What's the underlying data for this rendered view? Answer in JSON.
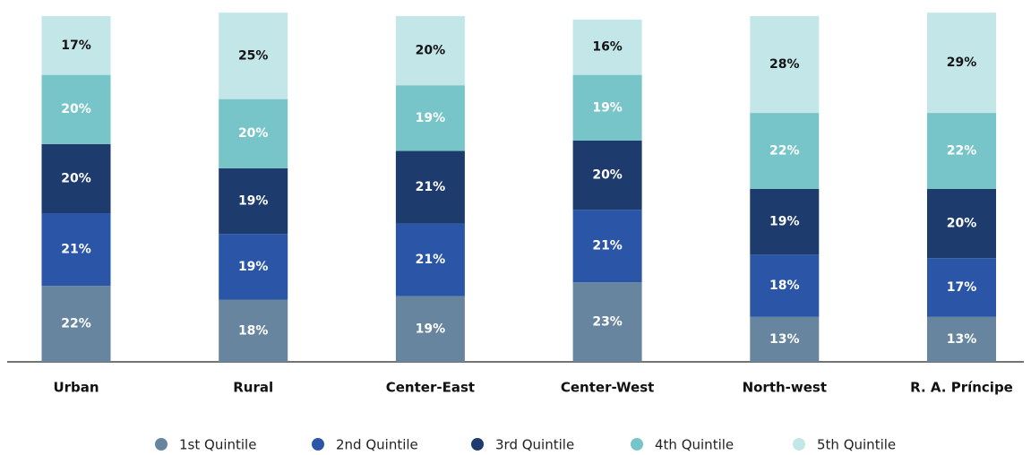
{
  "chart_data": {
    "type": "stacked-bar",
    "categories": [
      "Urban",
      "Rural",
      "Center-East",
      "Center-West",
      "North-west",
      "R. A. Príncipe"
    ],
    "series": [
      {
        "name": "1st Quintile",
        "color": "#67859f",
        "values": [
          22,
          18,
          19,
          23,
          13,
          13
        ],
        "value_labels": [
          "22%",
          "18%",
          "19%",
          "23%",
          "13%",
          "13%"
        ]
      },
      {
        "name": "2nd Quintile",
        "color": "#2b56a7",
        "values": [
          21,
          19,
          21,
          21,
          18,
          17
        ],
        "value_labels": [
          "21%",
          "19%",
          "21%",
          "21%",
          "18%",
          "17%"
        ]
      },
      {
        "name": "3rd Quintile",
        "color": "#1d3b6c",
        "values": [
          20,
          19,
          21,
          20,
          19,
          20
        ],
        "value_labels": [
          "20%",
          "19%",
          "21%",
          "20%",
          "19%",
          "20%"
        ]
      },
      {
        "name": "4th Quintile",
        "color": "#77c5c8",
        "values": [
          20,
          20,
          19,
          19,
          22,
          22
        ],
        "value_labels": [
          "20%",
          "20%",
          "19%",
          "19%",
          "22%",
          "22%"
        ]
      },
      {
        "name": "5th Quintile",
        "color": "#c3e6e9",
        "values": [
          17,
          25,
          20,
          16,
          28,
          29
        ],
        "value_labels": [
          "17%",
          "25%",
          "20%",
          "16%",
          "28%",
          "29%"
        ]
      }
    ],
    "legend": "bottom"
  }
}
